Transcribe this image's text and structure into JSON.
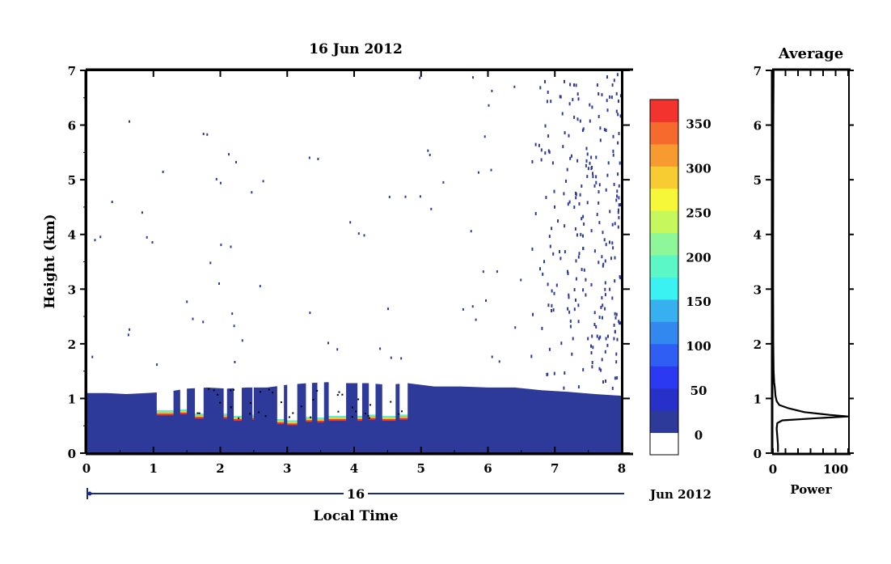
{
  "chart_data": [
    {
      "type": "heatmap",
      "title": "16 Jun 2012",
      "xlabel": "Local Time",
      "ylabel": "Height (km)",
      "xlim": [
        0,
        8
      ],
      "ylim": [
        0,
        7
      ],
      "x_ticks": [
        "0",
        "1",
        "2",
        "3",
        "4",
        "5",
        "6",
        "7",
        "8"
      ],
      "y_ticks": [
        "0",
        "1",
        "2",
        "3",
        "4",
        "5",
        "6",
        "7"
      ],
      "date_bar": {
        "day_label": "16",
        "month_label": "Jun 2012"
      },
      "colorbar": {
        "tick_labels": [
          "0",
          "50",
          "100",
          "150",
          "200",
          "250",
          "300",
          "350"
        ],
        "levels": [
          0,
          25,
          50,
          75,
          100,
          125,
          150,
          175,
          200,
          225,
          250,
          275,
          300,
          325,
          350,
          375
        ],
        "colors": [
          "#ffffff",
          "#2e3a9a",
          "#2730c8",
          "#2b3af2",
          "#2f5ef5",
          "#3288ee",
          "#36b0ee",
          "#3af2f2",
          "#5cf7c6",
          "#8ef79a",
          "#c6f75c",
          "#f7f73a",
          "#f7cc33",
          "#f79a30",
          "#f76a2e",
          "#f3332e"
        ]
      },
      "boundary_layer_top": [
        {
          "x": 0.0,
          "y": 1.1
        },
        {
          "x": 0.3,
          "y": 1.1
        },
        {
          "x": 0.6,
          "y": 1.08
        },
        {
          "x": 0.9,
          "y": 1.1
        },
        {
          "x": 1.2,
          "y": 1.12
        },
        {
          "x": 1.5,
          "y": 1.18
        },
        {
          "x": 1.8,
          "y": 1.2
        },
        {
          "x": 2.1,
          "y": 1.18
        },
        {
          "x": 2.4,
          "y": 1.2
        },
        {
          "x": 2.7,
          "y": 1.2
        },
        {
          "x": 3.0,
          "y": 1.25
        },
        {
          "x": 3.3,
          "y": 1.28
        },
        {
          "x": 3.6,
          "y": 1.3
        },
        {
          "x": 3.9,
          "y": 1.28
        },
        {
          "x": 4.2,
          "y": 1.28
        },
        {
          "x": 4.5,
          "y": 1.25
        },
        {
          "x": 4.8,
          "y": 1.28
        },
        {
          "x": 5.2,
          "y": 1.22
        },
        {
          "x": 5.6,
          "y": 1.22
        },
        {
          "x": 6.0,
          "y": 1.2
        },
        {
          "x": 6.4,
          "y": 1.2
        },
        {
          "x": 6.8,
          "y": 1.15
        },
        {
          "x": 7.2,
          "y": 1.12
        },
        {
          "x": 7.6,
          "y": 1.08
        },
        {
          "x": 8.0,
          "y": 1.05
        }
      ],
      "gaps": [
        {
          "x0": 1.05,
          "x1": 1.3,
          "bottom": 0.78
        },
        {
          "x0": 1.4,
          "x1": 1.5,
          "bottom": 0.8
        },
        {
          "x0": 1.62,
          "x1": 1.75,
          "bottom": 0.72
        },
        {
          "x0": 2.05,
          "x1": 2.1,
          "bottom": 0.72
        },
        {
          "x0": 2.2,
          "x1": 2.32,
          "bottom": 0.68
        },
        {
          "x0": 2.48,
          "x1": 2.5,
          "bottom": 0.7
        },
        {
          "x0": 2.85,
          "x1": 2.95,
          "bottom": 0.62
        },
        {
          "x0": 3.0,
          "x1": 3.15,
          "bottom": 0.6
        },
        {
          "x0": 3.28,
          "x1": 3.37,
          "bottom": 0.66
        },
        {
          "x0": 3.45,
          "x1": 3.55,
          "bottom": 0.65
        },
        {
          "x0": 3.62,
          "x1": 3.88,
          "bottom": 0.68
        },
        {
          "x0": 4.05,
          "x1": 4.12,
          "bottom": 0.68
        },
        {
          "x0": 4.22,
          "x1": 4.32,
          "bottom": 0.7
        },
        {
          "x0": 4.42,
          "x1": 4.62,
          "bottom": 0.68
        },
        {
          "x0": 4.68,
          "x1": 4.8,
          "bottom": 0.7
        }
      ]
    },
    {
      "type": "line",
      "title": "Average",
      "xlabel": "Power",
      "xlim": [
        0,
        120
      ],
      "ylim": [
        0,
        7
      ],
      "x_ticks": [
        "0",
        "100"
      ],
      "y_ticks": [
        "0",
        "1",
        "2",
        "3",
        "4",
        "5",
        "6",
        "7"
      ],
      "series": [
        {
          "points": [
            {
              "x": 8,
              "y": 0.02
            },
            {
              "x": 8,
              "y": 0.15
            },
            {
              "x": 7,
              "y": 0.3
            },
            {
              "x": 6,
              "y": 0.45
            },
            {
              "x": 7,
              "y": 0.55
            },
            {
              "x": 15,
              "y": 0.6
            },
            {
              "x": 70,
              "y": 0.64
            },
            {
              "x": 120,
              "y": 0.67
            },
            {
              "x": 90,
              "y": 0.7
            },
            {
              "x": 50,
              "y": 0.75
            },
            {
              "x": 25,
              "y": 0.82
            },
            {
              "x": 10,
              "y": 0.88
            },
            {
              "x": 6,
              "y": 0.95
            },
            {
              "x": 4,
              "y": 1.05
            },
            {
              "x": 3,
              "y": 1.2
            },
            {
              "x": 2,
              "y": 1.3
            },
            {
              "x": 1,
              "y": 1.5
            },
            {
              "x": 0.5,
              "y": 2.0
            },
            {
              "x": 0.3,
              "y": 3.0
            },
            {
              "x": 0.3,
              "y": 4.0
            },
            {
              "x": 0.4,
              "y": 5.0
            },
            {
              "x": 0.5,
              "y": 6.0
            },
            {
              "x": 0.8,
              "y": 6.5
            },
            {
              "x": 1,
              "y": 7.0
            }
          ]
        }
      ]
    }
  ]
}
